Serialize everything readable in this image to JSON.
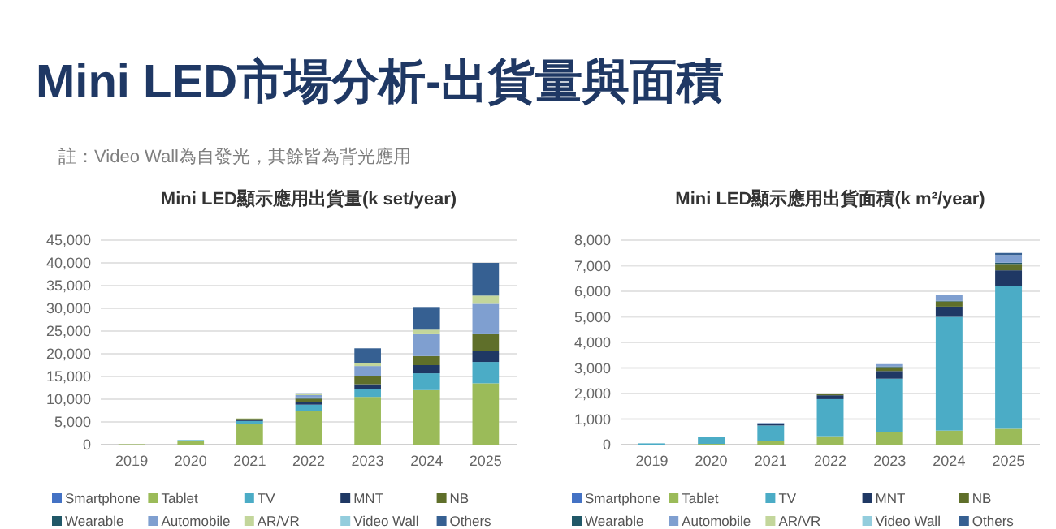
{
  "chart_data": [
    {
      "type": "other",
      "title": "Mini LED市場分析-出貨量與面積",
      "annotations": [
        "註：Video Wall為自發光，其餘皆為背光應用"
      ]
    },
    {
      "type": "bar",
      "stacked": true,
      "title": "Mini LED顯示應用出貨量(k set/year)",
      "categories": [
        "2019",
        "2020",
        "2021",
        "2022",
        "2023",
        "2024",
        "2025"
      ],
      "ylim": [
        0,
        45000
      ],
      "yticks": [
        {
          "value": 0,
          "label": "0"
        },
        {
          "value": 5000,
          "label": "5,000"
        },
        {
          "value": 10000,
          "label": "10,000"
        },
        {
          "value": 15000,
          "label": "15,000"
        },
        {
          "value": 20000,
          "label": "20,000"
        },
        {
          "value": 25000,
          "label": "25,000"
        },
        {
          "value": 30000,
          "label": "30,000"
        },
        {
          "value": 35000,
          "label": "35,000"
        },
        {
          "value": 40000,
          "label": "40,000"
        },
        {
          "value": 45000,
          "label": "45,000"
        }
      ],
      "grid": "y",
      "legend": "bottom",
      "series": [
        {
          "name": "Smartphone",
          "color": "#4472c4",
          "values": [
            0,
            0,
            0,
            0,
            0,
            0,
            0
          ]
        },
        {
          "name": "Tablet",
          "color": "#9bbb59",
          "values": [
            100,
            800,
            4500,
            7500,
            10500,
            12000,
            13500
          ]
        },
        {
          "name": "TV",
          "color": "#4bacc6",
          "values": [
            0,
            200,
            700,
            1300,
            1800,
            3700,
            4700
          ]
        },
        {
          "name": "MNT",
          "color": "#1f3864",
          "values": [
            0,
            0,
            200,
            500,
            1000,
            1800,
            2500
          ]
        },
        {
          "name": "NB",
          "color": "#5f6f2a",
          "values": [
            0,
            0,
            200,
            800,
            1700,
            2000,
            3600
          ]
        },
        {
          "name": "Wearable",
          "color": "#215868",
          "values": [
            0,
            0,
            0,
            300,
            0,
            0,
            0
          ]
        },
        {
          "name": "Automobile",
          "color": "#7f9fd0",
          "values": [
            0,
            0,
            100,
            500,
            2300,
            4800,
            6700
          ]
        },
        {
          "name": "AR/VR",
          "color": "#c3d69b",
          "values": [
            0,
            0,
            100,
            300,
            700,
            1000,
            1800
          ]
        },
        {
          "name": "Video Wall",
          "color": "#93cddd",
          "values": [
            0,
            0,
            0,
            0,
            0,
            0,
            0
          ]
        },
        {
          "name": "Others",
          "color": "#366092",
          "values": [
            0,
            0,
            0,
            100,
            3200,
            5000,
            7200
          ]
        }
      ]
    },
    {
      "type": "bar",
      "stacked": true,
      "title": "Mini LED顯示應用出貨面積(k m²/year)",
      "categories": [
        "2019",
        "2020",
        "2021",
        "2022",
        "2023",
        "2024",
        "2025"
      ],
      "ylim": [
        0,
        8000
      ],
      "yticks": [
        {
          "value": 0,
          "label": "0"
        },
        {
          "value": 1000,
          "label": "1,000"
        },
        {
          "value": 2000,
          "label": "2,000"
        },
        {
          "value": 3000,
          "label": "3,000"
        },
        {
          "value": 4000,
          "label": "4,000"
        },
        {
          "value": 5000,
          "label": "5,000"
        },
        {
          "value": 6000,
          "label": "6,000"
        },
        {
          "value": 7000,
          "label": "7,000"
        },
        {
          "value": 8000,
          "label": "8,000"
        }
      ],
      "grid": "y",
      "legend": "bottom",
      "series": [
        {
          "name": "Smartphone",
          "color": "#4472c4",
          "values": [
            0,
            0,
            0,
            0,
            0,
            0,
            0
          ]
        },
        {
          "name": "Tablet",
          "color": "#9bbb59",
          "values": [
            0,
            30,
            150,
            330,
            480,
            550,
            620
          ]
        },
        {
          "name": "TV",
          "color": "#4bacc6",
          "values": [
            50,
            270,
            600,
            1450,
            2100,
            4450,
            5580
          ]
        },
        {
          "name": "MNT",
          "color": "#1f3864",
          "values": [
            0,
            0,
            60,
            150,
            300,
            400,
            620
          ]
        },
        {
          "name": "NB",
          "color": "#5f6f2a",
          "values": [
            0,
            0,
            20,
            50,
            150,
            200,
            250
          ]
        },
        {
          "name": "Wearable",
          "color": "#215868",
          "values": [
            0,
            0,
            0,
            0,
            30,
            30,
            50
          ]
        },
        {
          "name": "Automobile",
          "color": "#7f9fd0",
          "values": [
            0,
            0,
            20,
            20,
            90,
            220,
            300
          ]
        },
        {
          "name": "AR/VR",
          "color": "#c3d69b",
          "values": [
            0,
            0,
            0,
            0,
            0,
            0,
            0
          ]
        },
        {
          "name": "Video Wall",
          "color": "#93cddd",
          "values": [
            0,
            0,
            0,
            0,
            0,
            0,
            0
          ]
        },
        {
          "name": "Others",
          "color": "#366092",
          "values": [
            0,
            0,
            0,
            0,
            0,
            0,
            80
          ]
        }
      ]
    }
  ]
}
